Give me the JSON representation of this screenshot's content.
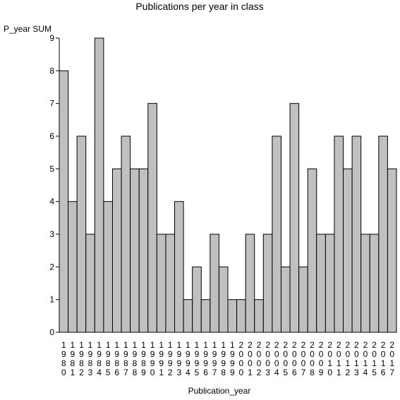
{
  "chart_data": {
    "type": "bar",
    "title": "Publications per year in class",
    "xlabel": "Publication_year",
    "ylabel": "P_year SUM",
    "ylim": [
      0,
      9
    ],
    "yticks": [
      0,
      1,
      2,
      3,
      4,
      5,
      6,
      7,
      8,
      9
    ],
    "grid": false,
    "bar_color": "#c0c0c0",
    "categories": [
      "1980",
      "1981",
      "1982",
      "1983",
      "1984",
      "1985",
      "1986",
      "1987",
      "1988",
      "1989",
      "1990",
      "1991",
      "1992",
      "1993",
      "1994",
      "1995",
      "1996",
      "1997",
      "1998",
      "1999",
      "2000",
      "2001",
      "2002",
      "2003",
      "2004",
      "2005",
      "2006",
      "2007",
      "2008",
      "2009",
      "2010",
      "2011",
      "2012",
      "2013",
      "2014",
      "2015",
      "2016",
      "2017"
    ],
    "values": [
      8,
      4,
      6,
      3,
      9,
      4,
      5,
      6,
      5,
      5,
      7,
      3,
      3,
      4,
      1,
      2,
      1,
      3,
      2,
      1,
      1,
      3,
      1,
      3,
      6,
      2,
      7,
      2,
      5,
      3,
      3,
      6,
      5,
      6,
      3,
      3,
      6,
      5
    ]
  }
}
